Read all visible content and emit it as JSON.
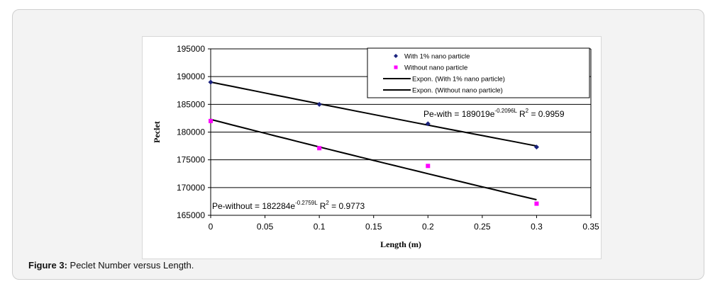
{
  "figure": {
    "caption_label": "Figure 3:",
    "caption_text": " Peclet Number versus Length."
  },
  "chart_data": {
    "type": "scatter",
    "xlabel": "Length (m)",
    "ylabel": "Peclet",
    "xlim": [
      0,
      0.35
    ],
    "ylim": [
      165000,
      195000
    ],
    "x_ticks": [
      "0",
      "0.05",
      "0.1",
      "0.15",
      "0.2",
      "0.25",
      "0.3",
      "0.35"
    ],
    "y_ticks": [
      "165000",
      "170000",
      "175000",
      "180000",
      "185000",
      "190000",
      "195000"
    ],
    "grid": "horizontal",
    "legend_position": "top-right",
    "series": [
      {
        "name": "With 1% nano particle",
        "marker": "diamond",
        "color": "#1a237e",
        "x": [
          0,
          0.1,
          0.2,
          0.3
        ],
        "y": [
          189000,
          185000,
          181500,
          177300
        ]
      },
      {
        "name": "Without nano particle",
        "marker": "square",
        "color": "#ff00ff",
        "x": [
          0,
          0.1,
          0.2,
          0.3
        ],
        "y": [
          182000,
          177100,
          173900,
          167100
        ]
      }
    ],
    "trendlines": [
      {
        "name": "Expon. (With 1% nano particle)",
        "a": 189019,
        "b": -0.2096,
        "color": "#000000",
        "equation": {
          "prefix": "Pe-with = 189019e",
          "exponent": "-0.2096L",
          "r2_label": "R",
          "r2_sup": "2",
          "r2_value": " = 0.9959"
        }
      },
      {
        "name": "Expon. (Without nano particle)",
        "a": 182284,
        "b": -0.2759,
        "color": "#000000",
        "equation": {
          "prefix": "Pe-without = 182284e",
          "exponent": "-0.2759L",
          "r2_label": "R",
          "r2_sup": "2",
          "r2_value": " = 0.9773"
        }
      }
    ]
  }
}
